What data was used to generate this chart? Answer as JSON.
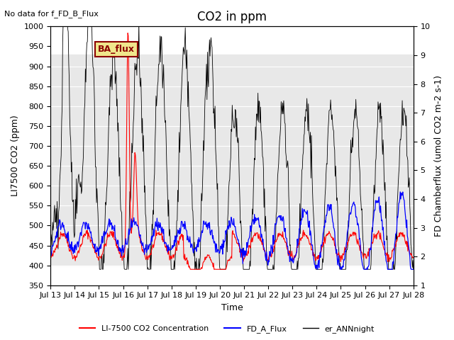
{
  "title": "CO2 in ppm",
  "top_left_text": "No data for f_FD_B_Flux",
  "box_label": "BA_flux",
  "ylabel_left": "LI7500 CO2 (ppm)",
  "ylabel_right": "FD Chamberflux (umol CO2 m-2 s-1)",
  "xlabel": "Time",
  "ylim_left": [
    350,
    1000
  ],
  "ylim_right": [
    1.0,
    10.0
  ],
  "yticks_left": [
    350,
    400,
    450,
    500,
    550,
    600,
    650,
    700,
    750,
    800,
    850,
    900,
    950,
    1000
  ],
  "yticks_right": [
    1.0,
    2.0,
    3.0,
    4.0,
    5.0,
    6.0,
    7.0,
    8.0,
    9.0,
    10.0
  ],
  "xticklabels": [
    "Jul 13",
    "Jul 14",
    "Jul 15",
    "Jul 16",
    "Jul 17",
    "Jul 18",
    "Jul 19",
    "Jul 20",
    "Jul 21",
    "Jul 22",
    "Jul 23",
    "Jul 24",
    "Jul 25",
    "Jul 26",
    "Jul 27",
    "Jul 28"
  ],
  "legend_entries": [
    {
      "label": "LI-7500 CO2 Concentration",
      "color": "red",
      "lw": 1.5
    },
    {
      "label": "FD_A_Flux",
      "color": "blue",
      "lw": 1.5
    },
    {
      "label": "er_ANNnight",
      "color": "black",
      "lw": 1.0
    }
  ],
  "background_band": {
    "ymin": 400,
    "ymax": 930,
    "color": "#e8e8e8"
  },
  "grid_color": "white",
  "grid_lw": 0.8,
  "title_fontsize": 12,
  "label_fontsize": 9,
  "tick_fontsize": 8
}
